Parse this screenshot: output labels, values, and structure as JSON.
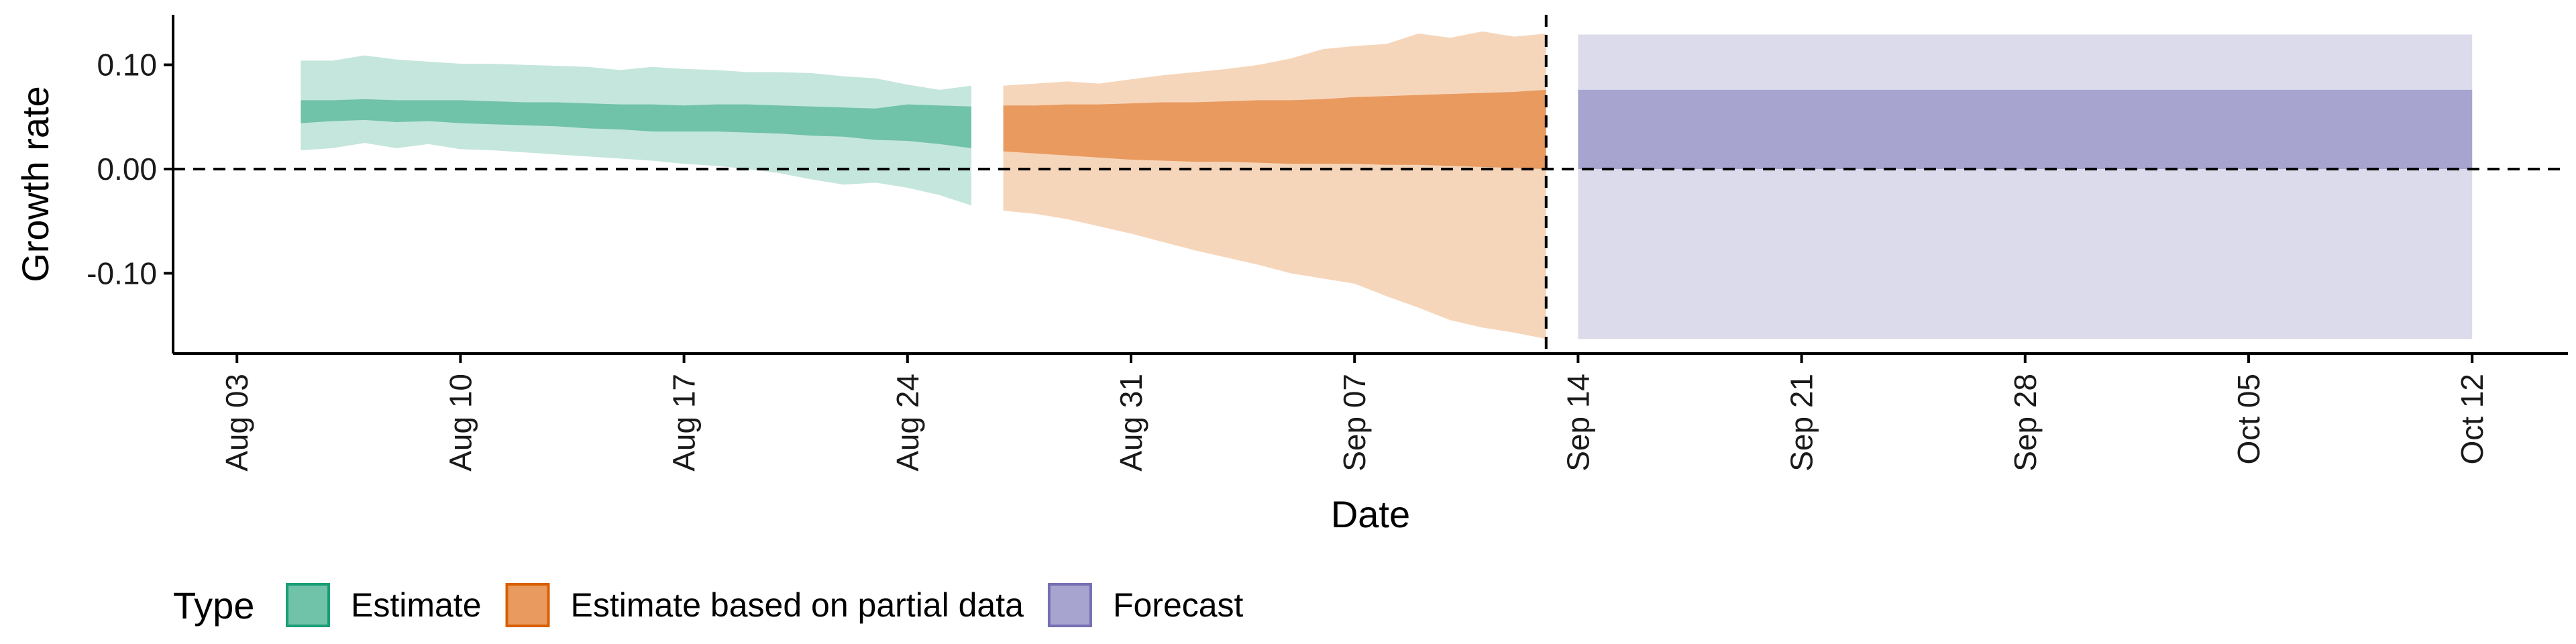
{
  "chart_data": {
    "type": "area",
    "xlabel": "Date",
    "ylabel": "Growth rate",
    "xlim": [
      "2020-08-01",
      "2020-10-15"
    ],
    "ylim": [
      -0.177,
      0.148
    ],
    "x_ticks": [
      "2020-08-03",
      "2020-08-10",
      "2020-08-17",
      "2020-08-24",
      "2020-08-31",
      "2020-09-07",
      "2020-09-14",
      "2020-09-21",
      "2020-09-28",
      "2020-10-05",
      "2020-10-12"
    ],
    "x_tick_labels": [
      "Aug 03",
      "Aug 10",
      "Aug 17",
      "Aug 24",
      "Aug 31",
      "Sep 07",
      "Sep 14",
      "Sep 21",
      "Sep 28",
      "Oct 05",
      "Oct 12"
    ],
    "y_ticks": [
      0.1,
      0.0,
      -0.1
    ],
    "y_tick_labels": [
      "0.10",
      "0.00",
      "-0.10"
    ],
    "hline": 0.0,
    "vline": "2020-09-13",
    "grid": false,
    "legend": {
      "title": "Type",
      "position": "bottom-left"
    },
    "colors": {
      "Estimate": {
        "outer": "#c5e6dc",
        "inner": "#70c2a8",
        "key_fill": "#70c2a8",
        "key_border": "#1b9e77"
      },
      "Estimate based on partial data": {
        "outer": "#f6d6bb",
        "inner": "#e99a5f",
        "key_fill": "#e99a5f",
        "key_border": "#d95f02"
      },
      "Forecast": {
        "outer": "#dcdbeb",
        "inner": "#a8a4d0",
        "key_fill": "#a8a4d0",
        "key_border": "#7570b3"
      }
    },
    "series": [
      {
        "name": "Estimate",
        "x": [
          "2020-08-05",
          "2020-08-06",
          "2020-08-07",
          "2020-08-08",
          "2020-08-09",
          "2020-08-10",
          "2020-08-11",
          "2020-08-12",
          "2020-08-13",
          "2020-08-14",
          "2020-08-15",
          "2020-08-16",
          "2020-08-17",
          "2020-08-18",
          "2020-08-19",
          "2020-08-20",
          "2020-08-21",
          "2020-08-22",
          "2020-08-23",
          "2020-08-24",
          "2020-08-25",
          "2020-08-26"
        ],
        "lower_90": [
          0.018,
          0.02,
          0.025,
          0.02,
          0.024,
          0.019,
          0.018,
          0.016,
          0.014,
          0.012,
          0.01,
          0.008,
          0.005,
          0.003,
          0.0,
          -0.004,
          -0.01,
          -0.015,
          -0.013,
          -0.018,
          -0.025,
          -0.035
        ],
        "lower_50": [
          0.044,
          0.046,
          0.047,
          0.045,
          0.046,
          0.044,
          0.043,
          0.042,
          0.041,
          0.039,
          0.038,
          0.036,
          0.036,
          0.036,
          0.035,
          0.034,
          0.032,
          0.031,
          0.028,
          0.027,
          0.024,
          0.02
        ],
        "upper_50": [
          0.066,
          0.066,
          0.067,
          0.066,
          0.066,
          0.066,
          0.065,
          0.064,
          0.064,
          0.063,
          0.062,
          0.062,
          0.061,
          0.062,
          0.062,
          0.061,
          0.06,
          0.059,
          0.058,
          0.062,
          0.061,
          0.06
        ],
        "upper_90": [
          0.104,
          0.104,
          0.109,
          0.105,
          0.103,
          0.101,
          0.101,
          0.1,
          0.099,
          0.098,
          0.095,
          0.098,
          0.096,
          0.095,
          0.093,
          0.093,
          0.092,
          0.089,
          0.087,
          0.081,
          0.076,
          0.08
        ]
      },
      {
        "name": "Estimate based on partial data",
        "x": [
          "2020-08-27",
          "2020-08-28",
          "2020-08-29",
          "2020-08-30",
          "2020-08-31",
          "2020-09-01",
          "2020-09-02",
          "2020-09-03",
          "2020-09-04",
          "2020-09-05",
          "2020-09-06",
          "2020-09-07",
          "2020-09-08",
          "2020-09-09",
          "2020-09-10",
          "2020-09-11",
          "2020-09-12",
          "2020-09-13"
        ],
        "lower_90": [
          -0.04,
          -0.043,
          -0.048,
          -0.055,
          -0.062,
          -0.07,
          -0.078,
          -0.085,
          -0.092,
          -0.1,
          -0.105,
          -0.11,
          -0.122,
          -0.133,
          -0.145,
          -0.152,
          -0.157,
          -0.163
        ],
        "lower_50": [
          0.017,
          0.015,
          0.013,
          0.011,
          0.009,
          0.008,
          0.007,
          0.007,
          0.006,
          0.005,
          0.005,
          0.005,
          0.004,
          0.004,
          0.003,
          0.002,
          0.001,
          0.0
        ],
        "upper_50": [
          0.061,
          0.061,
          0.062,
          0.062,
          0.063,
          0.064,
          0.064,
          0.065,
          0.066,
          0.066,
          0.067,
          0.069,
          0.07,
          0.071,
          0.072,
          0.073,
          0.074,
          0.076
        ],
        "upper_90": [
          0.08,
          0.082,
          0.084,
          0.082,
          0.086,
          0.09,
          0.093,
          0.096,
          0.1,
          0.106,
          0.115,
          0.118,
          0.12,
          0.13,
          0.126,
          0.132,
          0.127,
          0.13
        ]
      },
      {
        "name": "Forecast",
        "x": [
          "2020-09-14",
          "2020-10-12"
        ],
        "lower_90": [
          -0.163,
          -0.163
        ],
        "lower_50": [
          0.0,
          0.0
        ],
        "upper_50": [
          0.076,
          0.076
        ],
        "upper_90": [
          0.129,
          0.129
        ]
      }
    ]
  }
}
